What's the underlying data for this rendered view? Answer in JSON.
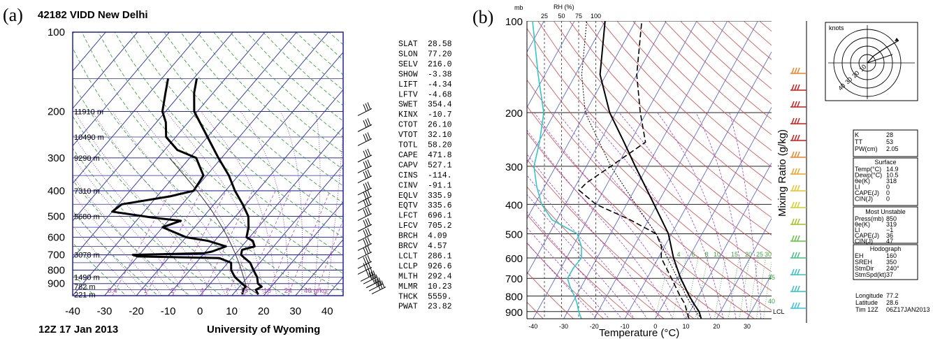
{
  "panel_a": {
    "letter": "(a)",
    "title": "42182 VIDD New Delhi",
    "footer_left": "12Z 17 Jan 2013",
    "footer_right": "University of Wyoming",
    "pressure_labels": [
      {
        "p": 100,
        "text": "100"
      },
      {
        "p": 200,
        "text": "200"
      },
      {
        "p": 300,
        "text": "300"
      },
      {
        "p": 400,
        "text": "400"
      },
      {
        "p": 500,
        "text": "500"
      },
      {
        "p": 600,
        "text": "600"
      },
      {
        "p": 700,
        "text": "700"
      },
      {
        "p": 800,
        "text": "800"
      },
      {
        "p": 900,
        "text": "900"
      }
    ],
    "height_labels": [
      {
        "p": 200,
        "text": "11910 m"
      },
      {
        "p": 250,
        "text": "10490 m"
      },
      {
        "p": 300,
        "text": "9290 m"
      },
      {
        "p": 400,
        "text": "7310 m"
      },
      {
        "p": 500,
        "text": "5680 m"
      },
      {
        "p": 700,
        "text": "3078 m"
      },
      {
        "p": 850,
        "text": "1490 m"
      },
      {
        "p": 925,
        "text": "782 m"
      },
      {
        "p": 990,
        "text": "221 m"
      }
    ],
    "mixing_labels": [
      "0.4",
      "1",
      "2",
      "4",
      "7",
      "10",
      "16",
      "24",
      "40 g/kg"
    ],
    "indices": [
      {
        "name": "SLAT",
        "value": "28.58"
      },
      {
        "name": "SLON",
        "value": "77.20"
      },
      {
        "name": "SELV",
        "value": "216.0"
      },
      {
        "name": "SHOW",
        "value": "-3.38"
      },
      {
        "name": "LIFT",
        "value": "-4.34"
      },
      {
        "name": "LFTV",
        "value": "-4.68"
      },
      {
        "name": "SWET",
        "value": "354.4"
      },
      {
        "name": "KINX",
        "value": "-10.7"
      },
      {
        "name": "CTOT",
        "value": "26.10"
      },
      {
        "name": "VTOT",
        "value": "32.10"
      },
      {
        "name": "TOTL",
        "value": "58.20"
      },
      {
        "name": "CAPE",
        "value": "471.8"
      },
      {
        "name": "CAPV",
        "value": "527.1"
      },
      {
        "name": "CINS",
        "value": "-114."
      },
      {
        "name": "CINV",
        "value": "-91.1"
      },
      {
        "name": "EQLV",
        "value": "335.9"
      },
      {
        "name": "EQTV",
        "value": "335.6"
      },
      {
        "name": "LFCT",
        "value": "696.1"
      },
      {
        "name": "LFCV",
        "value": "705.2"
      },
      {
        "name": "BRCH",
        "value": "4.09"
      },
      {
        "name": "BRCV",
        "value": "4.57"
      },
      {
        "name": "LCLT",
        "value": "286.1"
      },
      {
        "name": "LCLP",
        "value": "926.6"
      },
      {
        "name": "MLTH",
        "value": "292.4"
      },
      {
        "name": "MLMR",
        "value": "10.23"
      },
      {
        "name": "THCK",
        "value": "5559."
      },
      {
        "name": "PWAT",
        "value": "23.82"
      }
    ]
  },
  "panel_b": {
    "letter": "(b)",
    "mb_label": "mb",
    "rh_label": "RH (%)",
    "rh_ticks": [
      "25",
      "50",
      "75",
      "100"
    ],
    "xlabel": "Temperature (°C)",
    "mixing_axis_label": "Mixing Ratio (g/kg)",
    "lcl_label": "LCL",
    "mixing_labels": [
      "4",
      "6",
      "8",
      "10",
      "15",
      "20",
      "25",
      "30",
      "35",
      "40"
    ],
    "hodo_label": "knots",
    "hodo_rings": [
      "40",
      "30",
      "20",
      "10"
    ],
    "stats_top": [
      {
        "k": "K",
        "v": "28"
      },
      {
        "k": "TT",
        "v": "53"
      },
      {
        "k": "PW(cm)",
        "v": "2.05"
      }
    ],
    "surface_title": "Surface",
    "surface": [
      {
        "k": "Temp(°C)",
        "v": "14.9"
      },
      {
        "k": "Dewp(°C)",
        "v": "10.5"
      },
      {
        "k": "θe(K)",
        "v": "318"
      },
      {
        "k": "LI",
        "v": "0"
      },
      {
        "k": "CAPE(J)",
        "v": "0"
      },
      {
        "k": "CIN(J)",
        "v": "0"
      }
    ],
    "unstable_title": "Most Unstable",
    "unstable": [
      {
        "k": "Press(mb)",
        "v": "850"
      },
      {
        "k": "θe(K)",
        "v": "319"
      },
      {
        "k": "LI",
        "v": "−1"
      },
      {
        "k": "CAPE(J)",
        "v": "36"
      },
      {
        "k": "CIN(J)",
        "v": "47"
      }
    ],
    "hodograph_title": "Hodograph",
    "hodograph": [
      {
        "k": "EH",
        "v": "160"
      },
      {
        "k": "SREH",
        "v": "350"
      },
      {
        "k": "StmDir",
        "v": "240°"
      },
      {
        "k": "StmSpd(kt)",
        "v": "37"
      }
    ],
    "footer_lines": [
      {
        "k": "Longitude",
        "v": "77.2"
      },
      {
        "k": "Latitude",
        "v": "28.6"
      },
      {
        "k": "Tim 12Z",
        "v": "06Z17JAN2013"
      }
    ]
  },
  "chart_data": [
    {
      "type": "line",
      "chart": "skew-T log-P sounding",
      "x_axis": {
        "ticks": [
          -40,
          -30,
          -20,
          -10,
          0,
          10,
          20,
          30,
          40
        ],
        "range": [
          -40,
          45
        ]
      },
      "y_axis": {
        "scale": "log",
        "reversed": true,
        "ticks": [
          100,
          200,
          300,
          400,
          500,
          600,
          700,
          800,
          900
        ],
        "range": [
          100,
          1000
        ]
      },
      "series": [
        {
          "values": [
            [
              990,
              18
            ],
            [
              950,
              16
            ],
            [
              925,
              17
            ],
            [
              900,
              15
            ],
            [
              850,
              13
            ],
            [
              800,
              10
            ],
            [
              750,
              7
            ],
            [
              720,
              4
            ],
            [
              700,
              2
            ],
            [
              670,
              1
            ],
            [
              650,
              4
            ],
            [
              620,
              2
            ],
            [
              600,
              -1
            ],
            [
              550,
              -3
            ],
            [
              500,
              -6
            ],
            [
              450,
              -11
            ],
            [
              400,
              -17
            ],
            [
              350,
              -23
            ],
            [
              300,
              -31
            ],
            [
              250,
              -40
            ],
            [
              200,
              -51
            ],
            [
              170,
              -56
            ],
            [
              150,
              -59
            ]
          ]
        },
        {
          "values": [
            [
              990,
              13
            ],
            [
              950,
              12
            ],
            [
              925,
              12
            ],
            [
              900,
              10
            ],
            [
              850,
              6
            ],
            [
              800,
              3
            ],
            [
              750,
              1
            ],
            [
              720,
              -4
            ],
            [
              710,
              -30
            ],
            [
              700,
              -32
            ],
            [
              690,
              -10
            ],
            [
              680,
              -8
            ],
            [
              650,
              -5
            ],
            [
              620,
              -12
            ],
            [
              600,
              -20
            ],
            [
              550,
              -30
            ],
            [
              520,
              -26
            ],
            [
              505,
              -36
            ],
            [
              480,
              -50
            ],
            [
              450,
              -49
            ],
            [
              420,
              -36
            ],
            [
              400,
              -30
            ],
            [
              350,
              -31
            ],
            [
              300,
              -38
            ],
            [
              280,
              -46
            ],
            [
              250,
              -53
            ],
            [
              220,
              -57
            ],
            [
              200,
              -61
            ],
            [
              170,
              -65
            ],
            [
              150,
              -68
            ]
          ]
        }
      ],
      "grid": true
    },
    {
      "type": "line",
      "chart": "skew-T log-P sounding",
      "x_axis": {
        "ticks": [
          -40,
          -30,
          -20,
          -10,
          0,
          10,
          20,
          30
        ],
        "range": [
          -42,
          38
        ]
      },
      "y_axis": {
        "scale": "log",
        "reversed": true,
        "ticks": [
          100,
          200,
          300,
          400,
          500,
          600,
          700,
          800,
          900
        ],
        "range": [
          100,
          950
        ]
      },
      "rh_axis": {
        "ticks": [
          25,
          50,
          75,
          100
        ]
      },
      "series": [
        {
          "values": [
            [
              950,
              15
            ],
            [
              900,
              13
            ],
            [
              850,
              10
            ],
            [
              800,
              7
            ],
            [
              700,
              1
            ],
            [
              600,
              -5
            ],
            [
              500,
              -11
            ],
            [
              400,
              -21
            ],
            [
              300,
              -34
            ],
            [
              250,
              -42
            ],
            [
              200,
              -52
            ],
            [
              150,
              -62
            ],
            [
              100,
              -70
            ]
          ]
        },
        {
          "values": [
            [
              950,
              11
            ],
            [
              900,
              9
            ],
            [
              850,
              7
            ],
            [
              800,
              4
            ],
            [
              700,
              -2
            ],
            [
              600,
              -9
            ],
            [
              550,
              -11
            ],
            [
              500,
              -15
            ],
            [
              450,
              -26
            ],
            [
              400,
              -40
            ],
            [
              360,
              -48
            ],
            [
              340,
              -47
            ],
            [
              300,
              -42
            ],
            [
              250,
              -35
            ],
            [
              200,
              -42
            ],
            [
              150,
              -50
            ],
            [
              100,
              -58
            ]
          ]
        },
        {
          "values": [
            [
              950,
              15
            ],
            [
              900,
              12
            ],
            [
              850,
              9
            ],
            [
              800,
              6
            ],
            [
              700,
              0
            ],
            [
              600,
              -7
            ],
            [
              500,
              -15
            ],
            [
              400,
              -27
            ],
            [
              300,
              -42
            ],
            [
              200,
              -60
            ],
            [
              150,
              -68
            ],
            [
              100,
              -76
            ]
          ]
        }
      ],
      "grid": true
    }
  ]
}
